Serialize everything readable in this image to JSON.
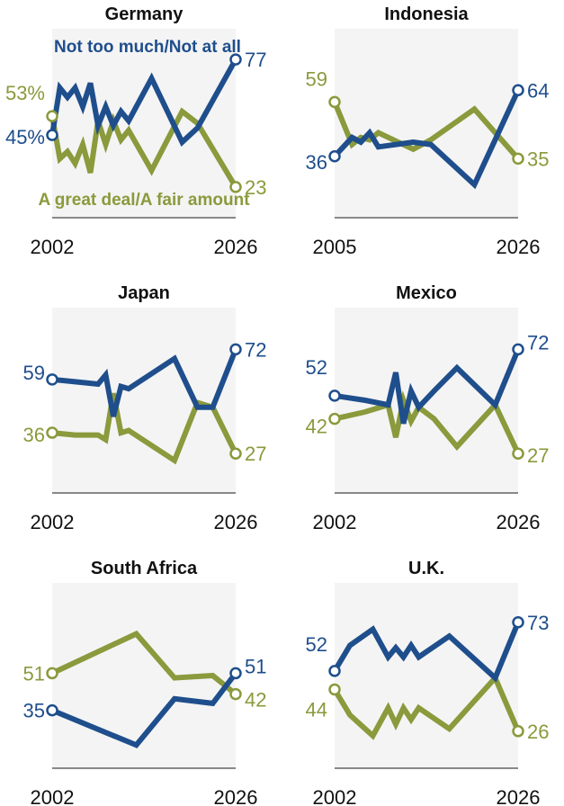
{
  "colors": {
    "series_a": "#1f4e8c",
    "series_b": "#8a9a3c",
    "panel_bg": "#f4f4f4",
    "axis": "#888888"
  },
  "legend": {
    "series_a": "Not too much/Not at all",
    "series_b": "A great deal/A fair amount"
  },
  "chart_data": [
    {
      "type": "line",
      "title": "Germany",
      "xlim": [
        2002,
        2026
      ],
      "ylim": [
        10,
        90
      ],
      "x_tick_labels": [
        "2002",
        "2026"
      ],
      "label_a": {
        "first": "45%",
        "last": "77"
      },
      "label_b": {
        "first": "53%",
        "last": "23"
      },
      "series": [
        {
          "key": "a",
          "name": "Not too much/Not at all",
          "x": [
            2002,
            2003,
            2004,
            2005,
            2006,
            2007,
            2008,
            2009,
            2010,
            2011,
            2012,
            2015,
            2019,
            2021,
            2026
          ],
          "y": [
            45,
            65,
            61,
            65,
            57,
            67,
            49,
            57,
            49,
            55,
            51,
            69,
            42,
            48,
            77
          ]
        },
        {
          "key": "b",
          "name": "A great deal/A fair amount",
          "x": [
            2002,
            2003,
            2004,
            2005,
            2006,
            2007,
            2008,
            2009,
            2010,
            2011,
            2012,
            2015,
            2019,
            2021,
            2026
          ],
          "y": [
            53,
            35,
            38,
            33,
            41,
            29,
            51,
            41,
            51,
            43,
            47,
            30,
            55,
            50,
            23
          ]
        }
      ]
    },
    {
      "type": "line",
      "title": "Indonesia",
      "xlim": [
        2005,
        2026
      ],
      "ylim": [
        10,
        90
      ],
      "x_tick_labels": [
        "2005",
        "2026"
      ],
      "label_a": {
        "first": "36",
        "last": "64"
      },
      "label_b": {
        "first": "59",
        "last": "35"
      },
      "series": [
        {
          "key": "a",
          "x": [
            2005,
            2007,
            2008,
            2009,
            2010,
            2014,
            2016,
            2021,
            2026
          ],
          "y": [
            36,
            44,
            42,
            46,
            40,
            42,
            41,
            24,
            64
          ]
        },
        {
          "key": "b",
          "x": [
            2005,
            2007,
            2008,
            2009,
            2010,
            2014,
            2016,
            2021,
            2026
          ],
          "y": [
            59,
            41,
            44,
            43,
            46,
            39,
            43,
            56,
            35
          ]
        }
      ]
    },
    {
      "type": "line",
      "title": "Japan",
      "xlim": [
        2002,
        2026
      ],
      "ylim": [
        10,
        90
      ],
      "x_tick_labels": [
        "2002",
        "2026"
      ],
      "label_a": {
        "first": "59",
        "last": "72"
      },
      "label_b": {
        "first": "36",
        "last": "27"
      },
      "series": [
        {
          "key": "a",
          "x": [
            2002,
            2005,
            2008,
            2009,
            2010,
            2011,
            2012,
            2018,
            2021,
            2023,
            2026
          ],
          "y": [
            59,
            58,
            57,
            61,
            43,
            56,
            55,
            68,
            47,
            47,
            72
          ]
        },
        {
          "key": "b",
          "x": [
            2002,
            2005,
            2008,
            2009,
            2010,
            2011,
            2012,
            2018,
            2021,
            2023,
            2026
          ],
          "y": [
            36,
            35,
            35,
            33,
            53,
            36,
            37,
            24,
            49,
            47,
            27
          ]
        }
      ]
    },
    {
      "type": "line",
      "title": "Mexico",
      "xlim": [
        2002,
        2026
      ],
      "ylim": [
        10,
        90
      ],
      "x_tick_labels": [
        "2002",
        "2026"
      ],
      "label_a": {
        "first": "52",
        "last": "72"
      },
      "label_b": {
        "first": "42",
        "last": "27"
      },
      "series": [
        {
          "key": "a",
          "x": [
            2002,
            2006,
            2009,
            2010,
            2011,
            2012,
            2013,
            2015,
            2018,
            2023,
            2026
          ],
          "y": [
            52,
            50,
            48,
            62,
            40,
            54,
            47,
            54,
            64,
            48,
            72
          ]
        },
        {
          "key": "b",
          "x": [
            2002,
            2006,
            2009,
            2010,
            2011,
            2012,
            2013,
            2015,
            2018,
            2023,
            2026
          ],
          "y": [
            42,
            45,
            48,
            34,
            50,
            41,
            47,
            42,
            30,
            48,
            27
          ]
        }
      ]
    },
    {
      "type": "line",
      "title": "South Africa",
      "xlim": [
        2002,
        2026
      ],
      "ylim": [
        10,
        90
      ],
      "x_tick_labels": [
        "2002",
        "2026"
      ],
      "label_a": {
        "first": "35",
        "last": "51"
      },
      "label_b": {
        "first": "51",
        "last": "42"
      },
      "series": [
        {
          "key": "a",
          "x": [
            2002,
            2013,
            2018,
            2023,
            2026
          ],
          "y": [
            35,
            20,
            40,
            38,
            51
          ]
        },
        {
          "key": "b",
          "x": [
            2002,
            2013,
            2018,
            2023,
            2026
          ],
          "y": [
            51,
            68,
            49,
            50,
            42
          ]
        }
      ]
    },
    {
      "type": "line",
      "title": "U.K.",
      "xlim": [
        2002,
        2026
      ],
      "ylim": [
        10,
        90
      ],
      "x_tick_labels": [
        "2002",
        "2026"
      ],
      "label_a": {
        "first": "52",
        "last": "73"
      },
      "label_b": {
        "first": "44",
        "last": "26"
      },
      "series": [
        {
          "key": "a",
          "x": [
            2002,
            2004,
            2007,
            2009,
            2010,
            2011,
            2012,
            2013,
            2017,
            2023,
            2026
          ],
          "y": [
            52,
            63,
            70,
            58,
            62,
            58,
            63,
            58,
            67,
            49,
            73
          ]
        },
        {
          "key": "b",
          "x": [
            2002,
            2004,
            2007,
            2009,
            2010,
            2011,
            2012,
            2013,
            2017,
            2023,
            2026
          ],
          "y": [
            44,
            33,
            24,
            36,
            29,
            36,
            31,
            36,
            27,
            49,
            26
          ]
        }
      ]
    }
  ]
}
